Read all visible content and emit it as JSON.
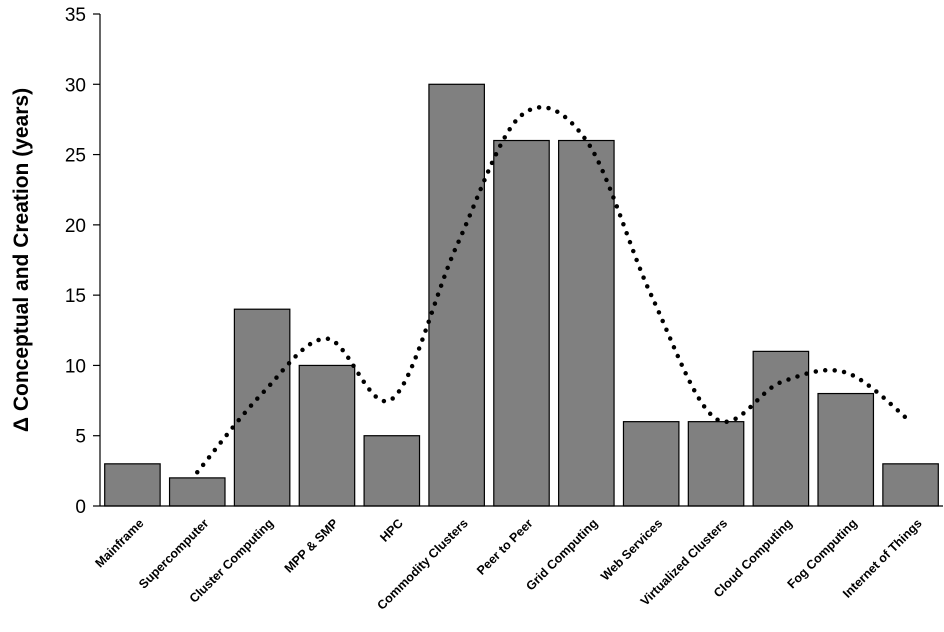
{
  "chart_data": {
    "type": "bar",
    "title": "",
    "ylabel": "Δ Conceptual and Creation (years)",
    "xlabel": "",
    "ylim": [
      0,
      35
    ],
    "yticks": [
      0,
      5,
      10,
      15,
      20,
      25,
      30,
      35
    ],
    "grid": false,
    "categories": [
      "Mainframe",
      "Supercomputer",
      "Cluster Computing",
      "MPP & SMP",
      "HPC",
      "Commodity Clusters",
      "Peer to Peer",
      "Grid Computing",
      "Web Services",
      "Virtualized Clusters",
      "Cloud Computing",
      "Fog Computing",
      "Internet of Things"
    ],
    "series": [
      {
        "values": [
          3,
          2,
          14,
          10,
          5,
          30,
          26,
          26,
          6,
          6,
          11,
          8,
          3
        ],
        "color": "#808080"
      }
    ],
    "trendline": {
      "style": "dotted",
      "color": "#000000",
      "values": [
        null,
        2.4,
        8.0,
        11.9,
        7.6,
        18.5,
        27.8,
        26.0,
        15.0,
        6.2,
        8.8,
        9.5,
        6.0
      ]
    }
  }
}
